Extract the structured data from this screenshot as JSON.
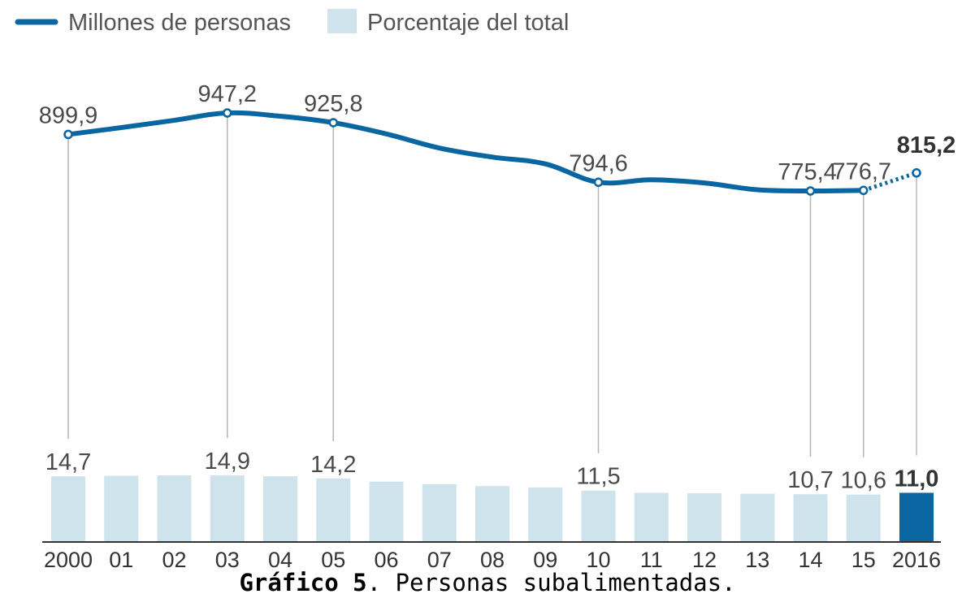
{
  "chart_data": {
    "type": "line+bar",
    "categories": [
      "2000",
      "01",
      "02",
      "03",
      "04",
      "05",
      "06",
      "07",
      "08",
      "09",
      "10",
      "11",
      "12",
      "13",
      "14",
      "15",
      "2016"
    ],
    "legend": {
      "line_label": "Millones de personas",
      "bar_label": "Porcentaje del total",
      "placement": "top-left"
    },
    "series": [
      {
        "name": "Millones de personas",
        "kind": "line",
        "values": [
          899.9,
          915,
          931,
          947.2,
          940,
          925.8,
          901,
          870,
          850,
          835,
          794.6,
          800,
          793,
          778,
          775.4,
          776.7,
          815.2
        ],
        "labeled_points": [
          {
            "index": 0,
            "text": "899,9"
          },
          {
            "index": 3,
            "text": "947,2"
          },
          {
            "index": 5,
            "text": "925,8"
          },
          {
            "index": 10,
            "text": "794,6"
          },
          {
            "index": 14,
            "text": "775,4"
          },
          {
            "index": 15,
            "text": "776,7"
          },
          {
            "index": 16,
            "text": "815,2",
            "bold": true
          }
        ],
        "dotted_last_segment": true,
        "color": "#0a66a0"
      },
      {
        "name": "Porcentaje del total",
        "kind": "bar",
        "values": [
          14.7,
          14.8,
          14.9,
          14.9,
          14.7,
          14.2,
          13.5,
          12.9,
          12.5,
          12.2,
          11.5,
          11.0,
          10.9,
          10.8,
          10.7,
          10.6,
          11.0
        ],
        "labeled_points": [
          {
            "index": 0,
            "text": "14,7"
          },
          {
            "index": 3,
            "text": "14,9"
          },
          {
            "index": 5,
            "text": "14,2"
          },
          {
            "index": 10,
            "text": "11,5"
          },
          {
            "index": 14,
            "text": "10,7"
          },
          {
            "index": 15,
            "text": "10,6"
          },
          {
            "index": 16,
            "text": "11,0",
            "bold": true
          }
        ],
        "color": "#cfe3ec",
        "highlight_color": "#0a66a0",
        "highlight_index": 16
      }
    ],
    "caption": {
      "prefix": "Gráfico 5",
      "text": ". Personas subalimentadas."
    }
  }
}
